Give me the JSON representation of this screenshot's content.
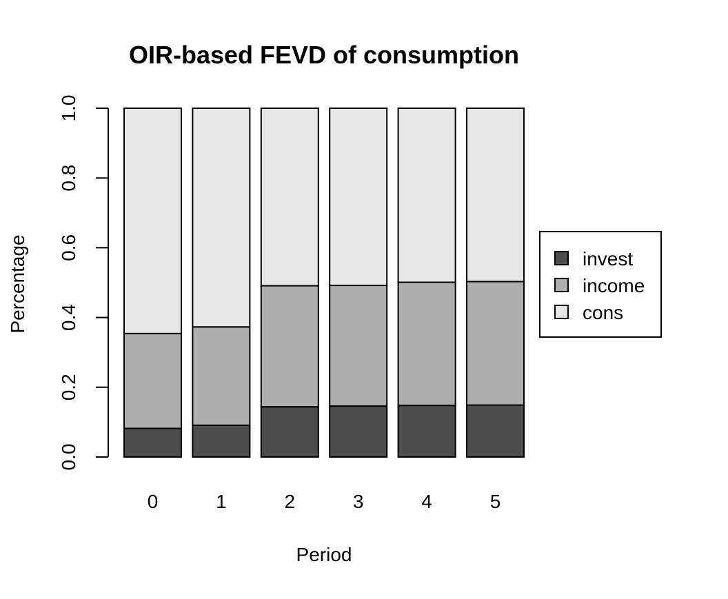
{
  "chart_data": {
    "type": "bar",
    "stacked": true,
    "title": "OIR-based FEVD of consumption",
    "xlabel": "Period",
    "ylabel": "Percentage",
    "categories": [
      "0",
      "1",
      "2",
      "3",
      "4",
      "5"
    ],
    "ylim": [
      0,
      1
    ],
    "yticks": [
      "0.0",
      "0.2",
      "0.4",
      "0.6",
      "0.8",
      "1.0"
    ],
    "grid": false,
    "legend_position": "right",
    "series": [
      {
        "name": "invest",
        "color": "#4d4d4d",
        "values": [
          0.082,
          0.091,
          0.144,
          0.146,
          0.148,
          0.149
        ]
      },
      {
        "name": "income",
        "color": "#aeaeae",
        "values": [
          0.272,
          0.282,
          0.347,
          0.346,
          0.353,
          0.354
        ]
      },
      {
        "name": "cons",
        "color": "#e6e6e6",
        "values": [
          0.646,
          0.627,
          0.509,
          0.508,
          0.499,
          0.497
        ]
      }
    ]
  }
}
